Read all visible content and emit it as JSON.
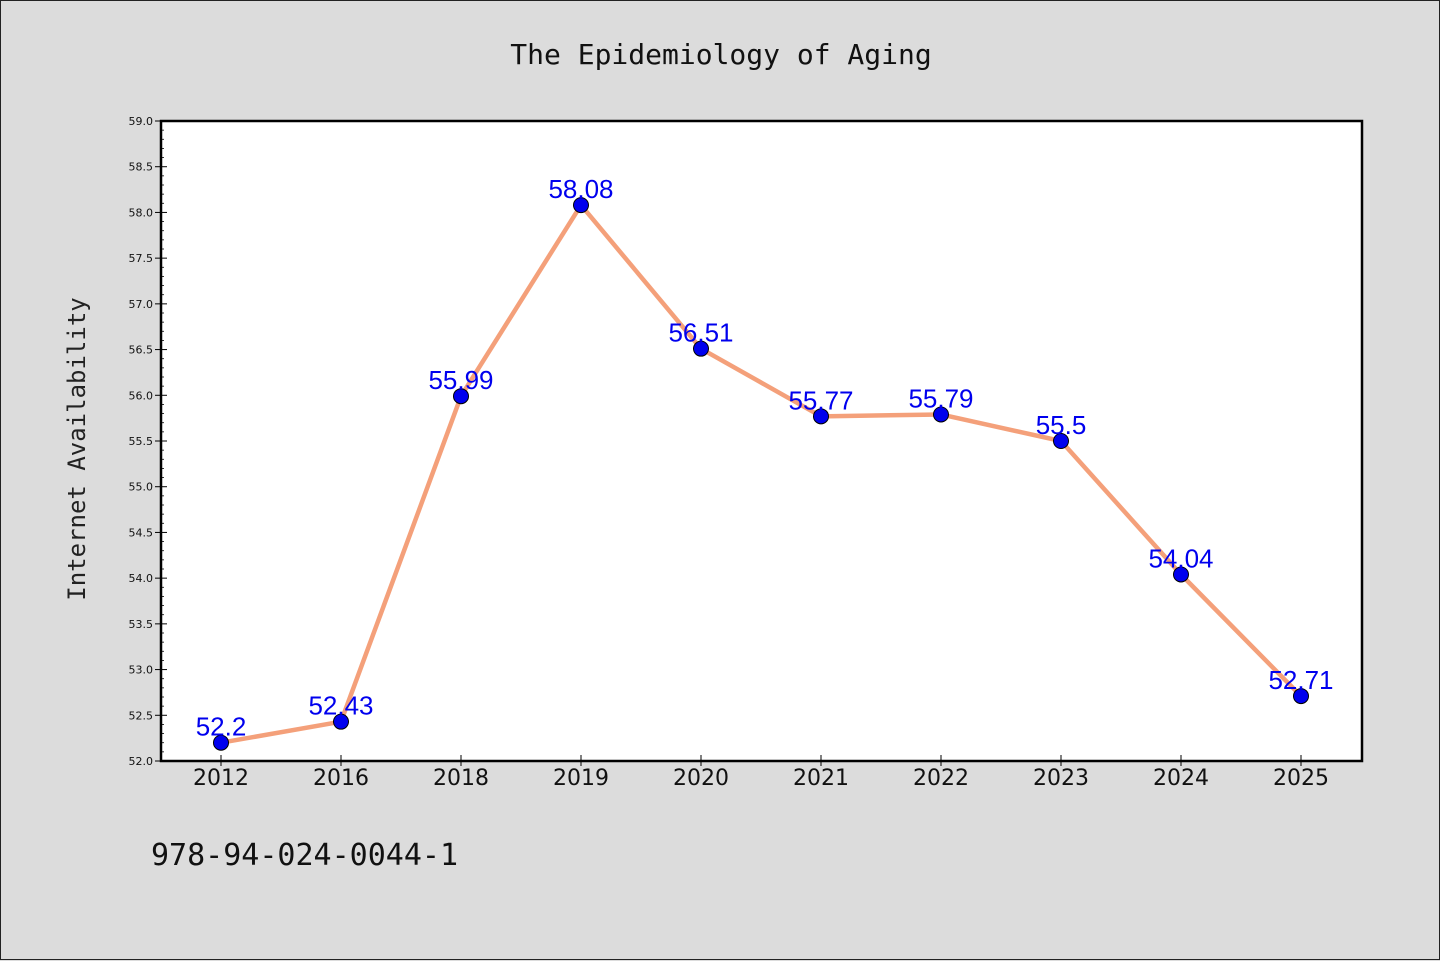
{
  "footer_code": "978-94-024-0044-1",
  "colors": {
    "background": "#dcdcdc",
    "plot_bg": "#ffffff",
    "line": "#f4a07a",
    "marker": "#0000ee",
    "label": "#0000ee"
  },
  "chart_data": {
    "type": "line",
    "title": "The Epidemiology of Aging",
    "xlabel": "",
    "ylabel": "Internet Availability",
    "categories": [
      "2012",
      "2016",
      "2018",
      "2019",
      "2020",
      "2021",
      "2022",
      "2023",
      "2024",
      "2025"
    ],
    "series": [
      {
        "values": [
          52.2,
          52.43,
          55.99,
          58.08,
          56.51,
          55.77,
          55.79,
          55.5,
          54.04,
          52.71
        ],
        "labels": [
          "52.2",
          "52.43",
          "55.99",
          "58.08",
          "56.51",
          "55.77",
          "55.79",
          "55.5",
          "54.04",
          "52.71"
        ]
      }
    ],
    "ylim": [
      52.0,
      59.0
    ],
    "yticks": [
      "52.0",
      "52.5",
      "53.0",
      "53.5",
      "54.0",
      "54.5",
      "55.0",
      "55.5",
      "56.0",
      "56.5",
      "57.0",
      "57.5",
      "58.0",
      "58.5",
      "59.0"
    ],
    "grid": false,
    "legend": "none"
  }
}
